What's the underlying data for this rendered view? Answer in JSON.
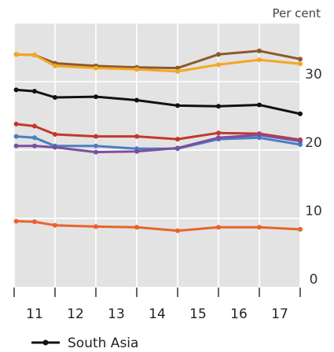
{
  "chart_data": {
    "type": "line",
    "title": "",
    "unit_label": "Per cent",
    "xlabel": "",
    "ylabel": "",
    "x": [
      11,
      12,
      13,
      14,
      15,
      16,
      17
    ],
    "x_tick_labels": [
      "11",
      "12",
      "13",
      "14",
      "15",
      "16",
      "17"
    ],
    "y_ticks": [
      0,
      10,
      20,
      30
    ],
    "y_tick_labels": [
      "0",
      "10",
      "20",
      "30"
    ],
    "ylim": [
      0,
      38.5
    ],
    "grid": true,
    "y_axis_side": "right",
    "legend_placement": "bottom-left",
    "colors": {
      "plot_background": "#e3e3e3",
      "gridline": "#ffffff"
    },
    "series": [
      {
        "name": "",
        "color": "#8b5a2b",
        "points": [
          [
            10.55,
            34.0
          ],
          [
            11.0,
            33.9
          ],
          [
            11.5,
            32.7
          ],
          [
            12.5,
            32.3
          ],
          [
            13.5,
            32.1
          ],
          [
            14.5,
            32.0
          ],
          [
            15.5,
            34.0
          ],
          [
            16.5,
            34.5
          ],
          [
            17.5,
            33.3
          ]
        ]
      },
      {
        "name": "",
        "color": "#f5a623",
        "points": [
          [
            10.55,
            34.0
          ],
          [
            11.0,
            33.9
          ],
          [
            11.5,
            32.3
          ],
          [
            12.5,
            32.0
          ],
          [
            13.5,
            31.8
          ],
          [
            14.5,
            31.5
          ],
          [
            15.5,
            32.5
          ],
          [
            16.5,
            33.2
          ],
          [
            17.5,
            32.6
          ]
        ]
      },
      {
        "name": "South Asia",
        "color": "#111111",
        "points": [
          [
            10.55,
            28.8
          ],
          [
            11.0,
            28.6
          ],
          [
            11.5,
            27.7
          ],
          [
            12.5,
            27.8
          ],
          [
            13.5,
            27.3
          ],
          [
            14.5,
            26.5
          ],
          [
            15.5,
            26.4
          ],
          [
            16.5,
            26.6
          ],
          [
            17.5,
            25.3
          ]
        ]
      },
      {
        "name": "",
        "color": "#c0392b",
        "points": [
          [
            10.55,
            23.8
          ],
          [
            11.0,
            23.5
          ],
          [
            11.5,
            22.3
          ],
          [
            12.5,
            22.0
          ],
          [
            13.5,
            22.0
          ],
          [
            14.5,
            21.6
          ],
          [
            15.5,
            22.5
          ],
          [
            16.5,
            22.4
          ],
          [
            17.5,
            21.5
          ]
        ]
      },
      {
        "name": "",
        "color": "#4a7fc1",
        "points": [
          [
            10.55,
            22.0
          ],
          [
            11.0,
            21.8
          ],
          [
            11.5,
            20.6
          ],
          [
            12.5,
            20.6
          ],
          [
            13.5,
            20.2
          ],
          [
            14.5,
            20.2
          ],
          [
            15.5,
            21.6
          ],
          [
            16.5,
            21.8
          ],
          [
            17.5,
            20.8
          ]
        ]
      },
      {
        "name": "",
        "color": "#7b4fa0",
        "points": [
          [
            10.55,
            20.6
          ],
          [
            11.0,
            20.6
          ],
          [
            11.5,
            20.4
          ],
          [
            12.5,
            19.7
          ],
          [
            13.5,
            19.8
          ],
          [
            14.5,
            20.3
          ],
          [
            15.5,
            21.8
          ],
          [
            16.5,
            22.2
          ],
          [
            17.5,
            21.3
          ]
        ]
      },
      {
        "name": "",
        "color": "#e8632a",
        "points": [
          [
            10.55,
            9.6
          ],
          [
            11.0,
            9.5
          ],
          [
            11.5,
            9.0
          ],
          [
            12.5,
            8.8
          ],
          [
            13.5,
            8.7
          ],
          [
            14.5,
            8.2
          ],
          [
            15.5,
            8.7
          ],
          [
            16.5,
            8.7
          ],
          [
            17.5,
            8.4
          ]
        ]
      }
    ]
  }
}
